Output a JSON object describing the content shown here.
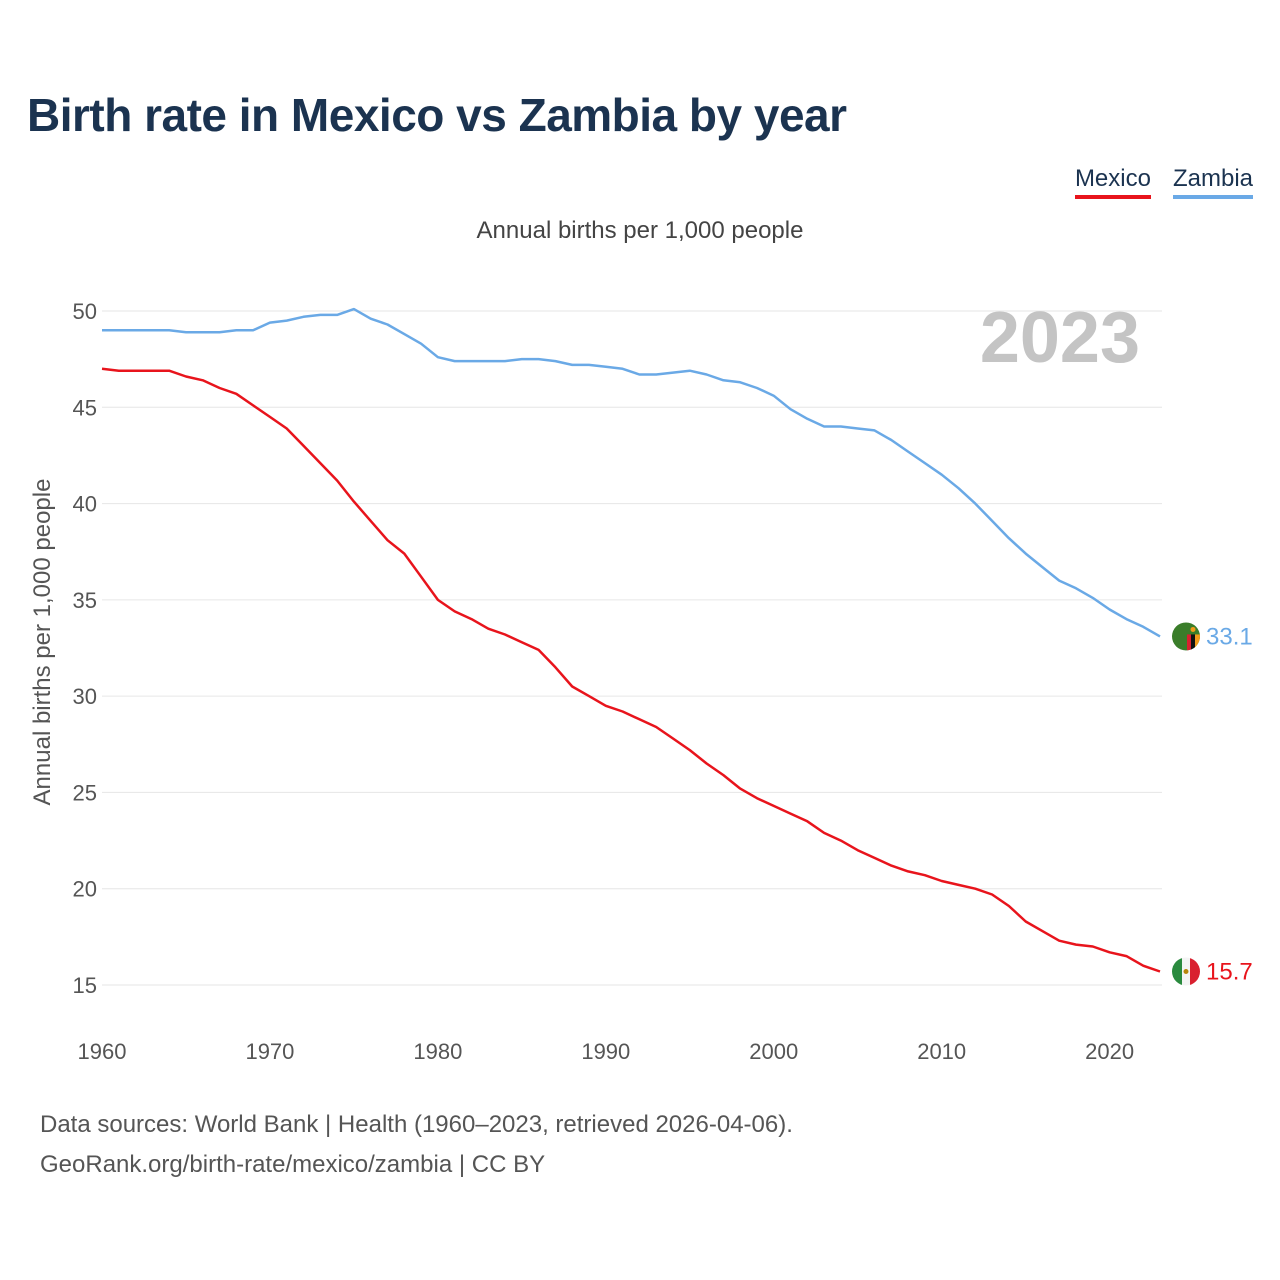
{
  "chart_data": {
    "type": "line",
    "title": "Birth rate in Mexico vs Zambia by year",
    "subtitle": "Annual births per 1,000 people",
    "ylabel": "Annual births per 1,000 people",
    "xlabel": "",
    "xlim": [
      1960,
      2023
    ],
    "ylim": [
      13,
      51
    ],
    "yticks": [
      15,
      20,
      25,
      30,
      35,
      40,
      45,
      50
    ],
    "xticks": [
      1960,
      1970,
      1980,
      1990,
      2000,
      2010,
      2020
    ],
    "grid": true,
    "legend_position": "top-right",
    "year_label": "2023",
    "x": [
      1960,
      1961,
      1962,
      1963,
      1964,
      1965,
      1966,
      1967,
      1968,
      1969,
      1970,
      1971,
      1972,
      1973,
      1974,
      1975,
      1976,
      1977,
      1978,
      1979,
      1980,
      1981,
      1982,
      1983,
      1984,
      1985,
      1986,
      1987,
      1988,
      1989,
      1990,
      1991,
      1992,
      1993,
      1994,
      1995,
      1996,
      1997,
      1998,
      1999,
      2000,
      2001,
      2002,
      2003,
      2004,
      2005,
      2006,
      2007,
      2008,
      2009,
      2010,
      2011,
      2012,
      2013,
      2014,
      2015,
      2016,
      2017,
      2018,
      2019,
      2020,
      2021,
      2022,
      2023
    ],
    "series": [
      {
        "name": "Mexico",
        "color": "#e8141c",
        "end_label": "15.7",
        "values": [
          47.0,
          46.9,
          46.9,
          46.9,
          46.9,
          46.6,
          46.4,
          46.0,
          45.7,
          45.1,
          44.5,
          43.9,
          43.0,
          42.1,
          41.2,
          40.1,
          39.1,
          38.1,
          37.4,
          36.2,
          35.0,
          34.4,
          34.0,
          33.5,
          33.2,
          32.8,
          32.4,
          31.5,
          30.5,
          30.0,
          29.5,
          29.2,
          28.8,
          28.4,
          27.8,
          27.2,
          26.5,
          25.9,
          25.2,
          24.7,
          24.3,
          23.9,
          23.5,
          22.9,
          22.5,
          22.0,
          21.6,
          21.2,
          20.9,
          20.7,
          20.4,
          20.2,
          20.0,
          19.7,
          19.1,
          18.3,
          17.8,
          17.3,
          17.1,
          17.0,
          16.7,
          16.5,
          16.0,
          15.7
        ]
      },
      {
        "name": "Zambia",
        "color": "#6aa9e6",
        "end_label": "33.1",
        "values": [
          49.0,
          49.0,
          49.0,
          49.0,
          49.0,
          48.9,
          48.9,
          48.9,
          49.0,
          49.0,
          49.4,
          49.5,
          49.7,
          49.8,
          49.8,
          50.1,
          49.6,
          49.3,
          48.8,
          48.3,
          47.6,
          47.4,
          47.4,
          47.4,
          47.4,
          47.5,
          47.5,
          47.4,
          47.2,
          47.2,
          47.1,
          47.0,
          46.7,
          46.7,
          46.8,
          46.9,
          46.7,
          46.4,
          46.3,
          46.0,
          45.6,
          44.9,
          44.4,
          44.0,
          44.0,
          43.9,
          43.8,
          43.3,
          42.7,
          42.1,
          41.5,
          40.8,
          40.0,
          39.1,
          38.2,
          37.4,
          36.7,
          36.0,
          35.6,
          35.1,
          34.5,
          34.0,
          33.6,
          33.1
        ]
      }
    ]
  },
  "legend": {
    "mexico": "Mexico",
    "zambia": "Zambia"
  },
  "footer": {
    "line1": "Data sources: World Bank | Health (1960–2023, retrieved 2026-04-06).",
    "line2": "GeoRank.org/birth-rate/mexico/zambia | CC BY"
  }
}
